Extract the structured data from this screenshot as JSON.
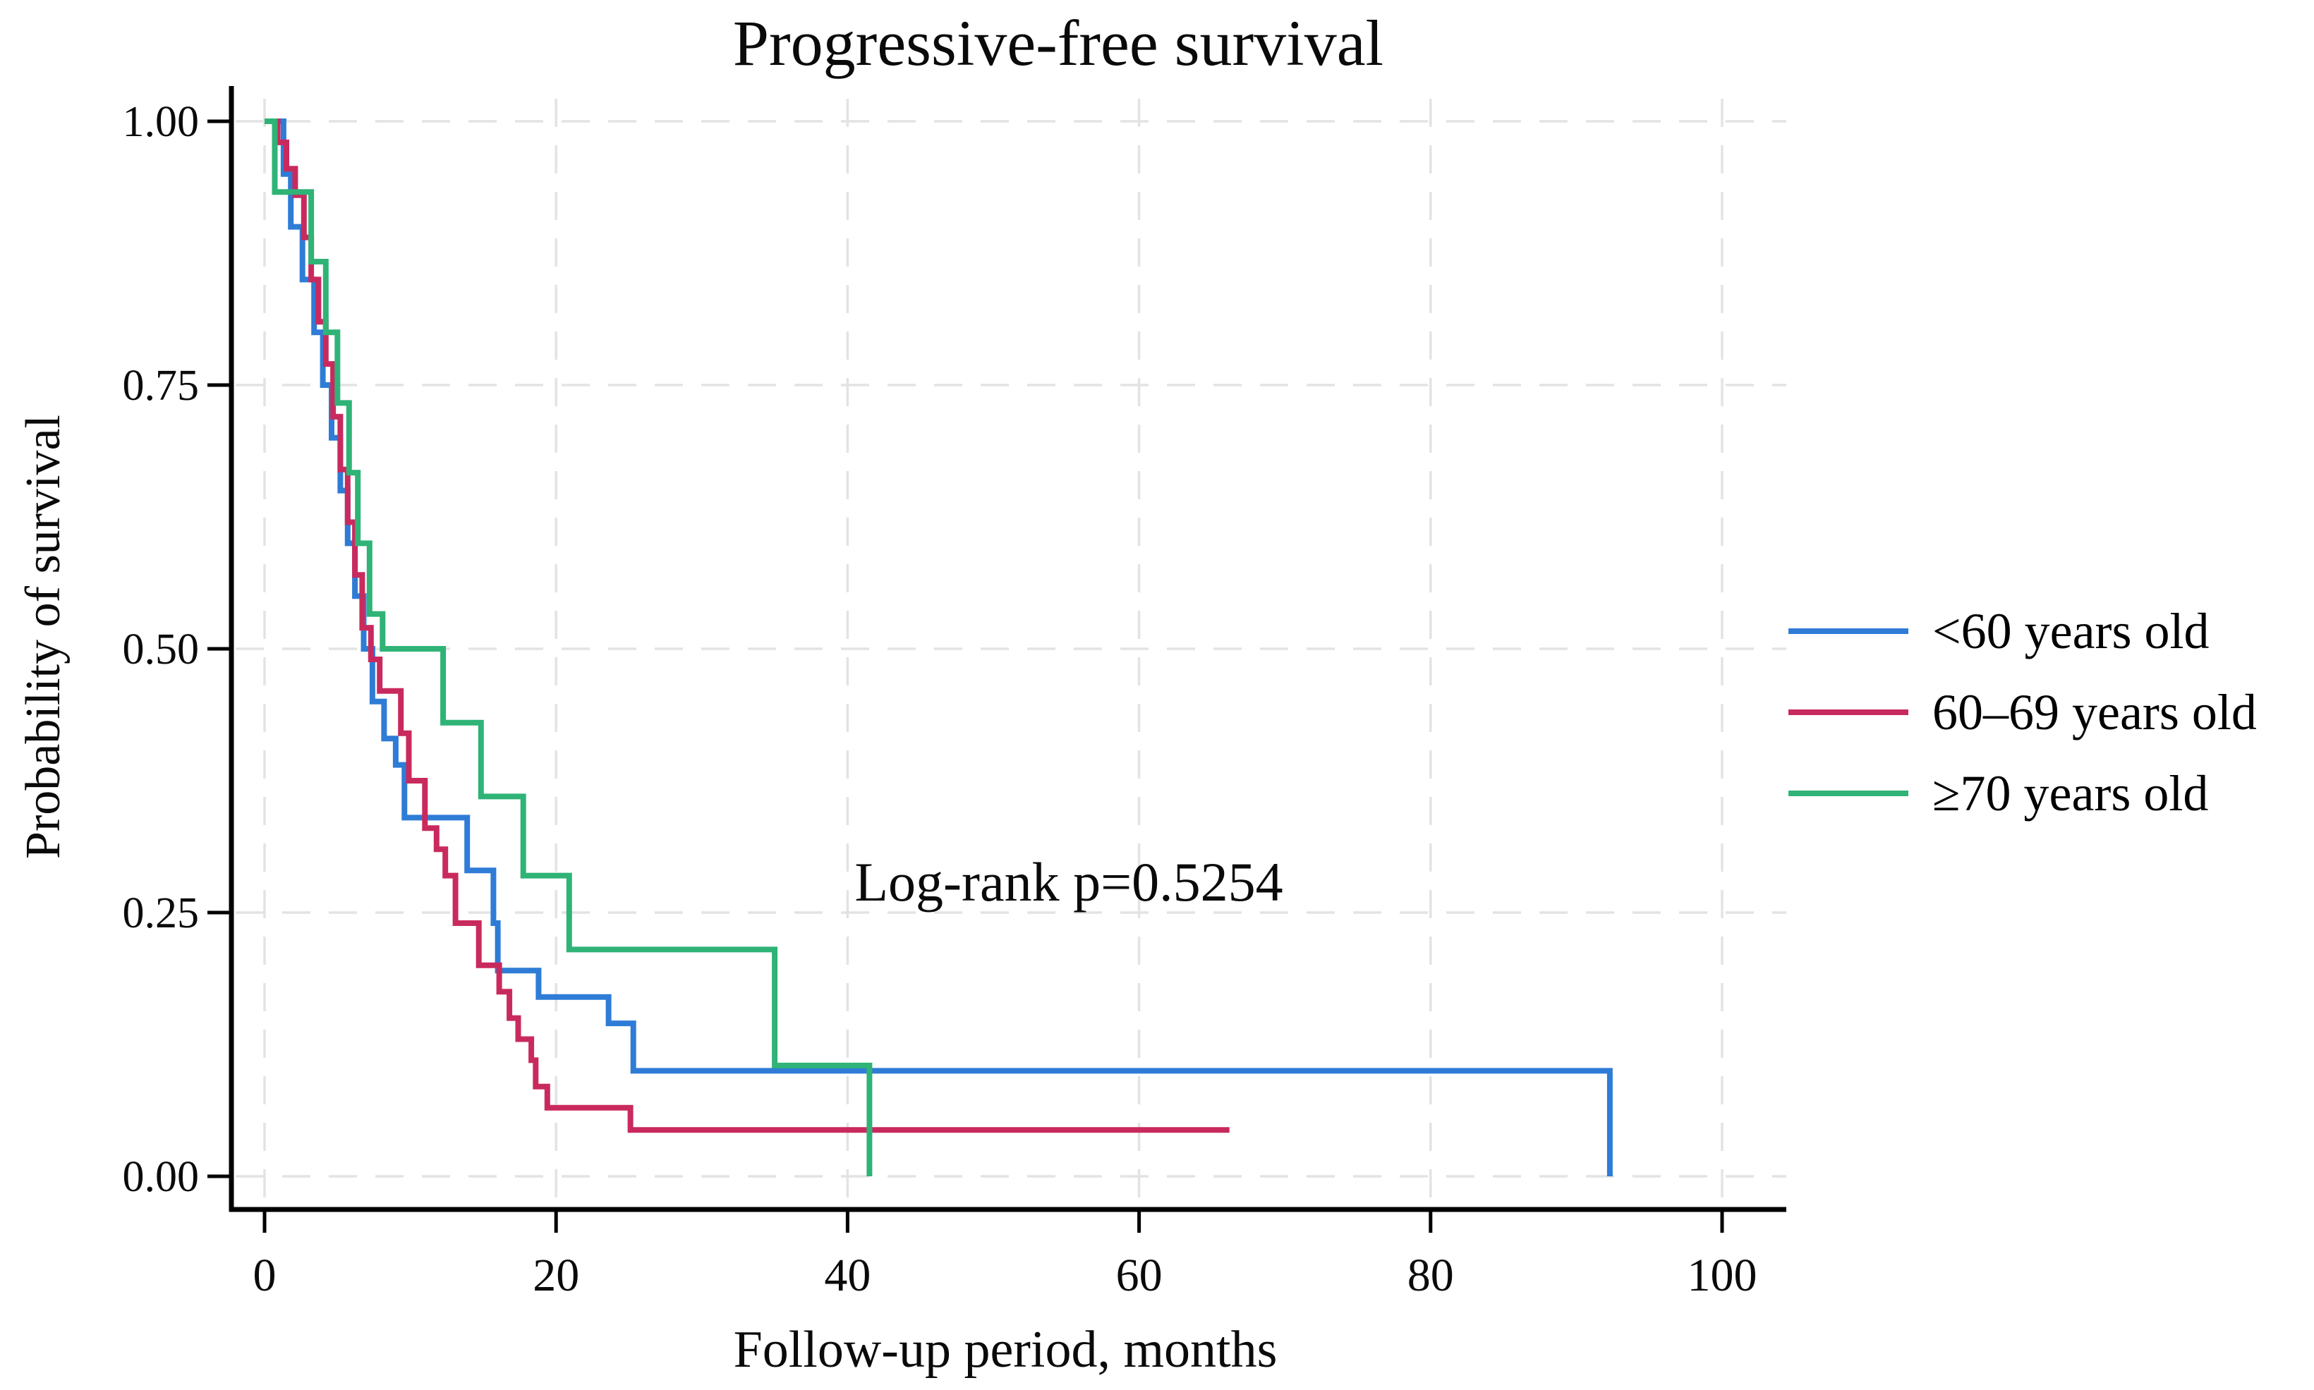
{
  "chart_data": {
    "type": "line",
    "subtype": "kaplan-meier-step",
    "title": "Progressive-free survival",
    "xlabel": "Follow-up period, months",
    "ylabel": "Probability of survival",
    "xlim": [
      0,
      100
    ],
    "ylim": [
      0.0,
      1.0
    ],
    "grid": "dashed-light-gray",
    "legend_position": "right-outside",
    "annotation": {
      "text": "Log-rank p=0.5254"
    },
    "xticks": [
      {
        "value": 0,
        "label": "0"
      },
      {
        "value": 20,
        "label": "20"
      },
      {
        "value": 40,
        "label": "40"
      },
      {
        "value": 60,
        "label": "60"
      },
      {
        "value": 80,
        "label": "80"
      },
      {
        "value": 100,
        "label": "100"
      }
    ],
    "yticks": [
      {
        "value": 0.0,
        "label": "0.00"
      },
      {
        "value": 0.25,
        "label": "0.25"
      },
      {
        "value": 0.5,
        "label": "0.50"
      },
      {
        "value": 0.75,
        "label": "0.75"
      },
      {
        "value": 1.0,
        "label": "1.00"
      }
    ],
    "series": [
      {
        "name": "<60 years old",
        "color": "#2e7cd6",
        "end": "event-drop-to-zero",
        "points_month_survival": [
          [
            0,
            1.0
          ],
          [
            1.3,
            0.95
          ],
          [
            1.8,
            0.9
          ],
          [
            2.6,
            0.85
          ],
          [
            3.4,
            0.8
          ],
          [
            4.0,
            0.75
          ],
          [
            4.6,
            0.7
          ],
          [
            5.2,
            0.65
          ],
          [
            5.7,
            0.6
          ],
          [
            6.2,
            0.55
          ],
          [
            6.8,
            0.5
          ],
          [
            7.4,
            0.45
          ],
          [
            8.2,
            0.415
          ],
          [
            9.0,
            0.39
          ],
          [
            9.6,
            0.34
          ],
          [
            13.9,
            0.29
          ],
          [
            15.7,
            0.24
          ],
          [
            16.0,
            0.195
          ],
          [
            18.8,
            0.17
          ],
          [
            23.6,
            0.145
          ],
          [
            25.3,
            0.1
          ],
          [
            92.3,
            0.0
          ]
        ]
      },
      {
        "name": "60–69 years old",
        "color": "#c92a5d",
        "end": "censored",
        "points_month_survival": [
          [
            0,
            1.0
          ],
          [
            0.9,
            0.98
          ],
          [
            1.5,
            0.955
          ],
          [
            2.1,
            0.93
          ],
          [
            2.7,
            0.89
          ],
          [
            3.2,
            0.85
          ],
          [
            3.7,
            0.81
          ],
          [
            4.2,
            0.77
          ],
          [
            4.7,
            0.72
          ],
          [
            5.2,
            0.67
          ],
          [
            5.7,
            0.62
          ],
          [
            6.2,
            0.57
          ],
          [
            6.7,
            0.52
          ],
          [
            7.3,
            0.49
          ],
          [
            7.9,
            0.46
          ],
          [
            9.35,
            0.42
          ],
          [
            9.9,
            0.375
          ],
          [
            11.0,
            0.33
          ],
          [
            11.8,
            0.31
          ],
          [
            12.4,
            0.285
          ],
          [
            13.1,
            0.24
          ],
          [
            14.7,
            0.2
          ],
          [
            16.1,
            0.175
          ],
          [
            16.8,
            0.15
          ],
          [
            17.4,
            0.13
          ],
          [
            18.3,
            0.11
          ],
          [
            18.6,
            0.085
          ],
          [
            19.4,
            0.065
          ],
          [
            25.1,
            0.044
          ],
          [
            66.2,
            0.044
          ]
        ]
      },
      {
        "name": "≥70 years old",
        "color": "#2fb377",
        "end": "event-drop-to-zero",
        "points_month_survival": [
          [
            0,
            1.0
          ],
          [
            0.7,
            0.933
          ],
          [
            3.2,
            0.867
          ],
          [
            4.2,
            0.8
          ],
          [
            5.0,
            0.733
          ],
          [
            5.8,
            0.667
          ],
          [
            6.4,
            0.6
          ],
          [
            7.2,
            0.533
          ],
          [
            8.1,
            0.5
          ],
          [
            12.25,
            0.43
          ],
          [
            14.85,
            0.36
          ],
          [
            17.75,
            0.285
          ],
          [
            20.9,
            0.215
          ],
          [
            35.0,
            0.105
          ],
          [
            41.5,
            0.0
          ]
        ]
      }
    ]
  }
}
